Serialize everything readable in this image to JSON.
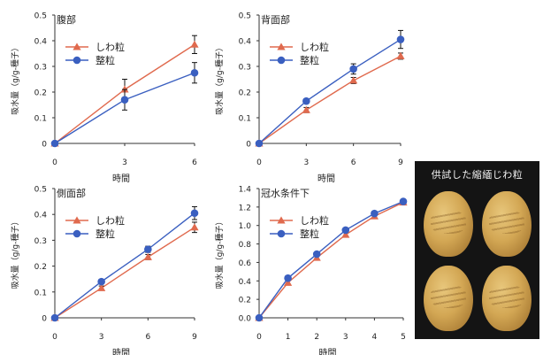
{
  "ylabel": "吸水量（g/g-種子）",
  "xlabel": "時間",
  "colors": {
    "shiwa": "#e06a4e",
    "sei": "#3a5fc0",
    "axis": "#333333"
  },
  "photo": {
    "caption": "供試した縮緬じわ粒"
  },
  "chart_data": [
    {
      "type": "line",
      "title": "腹部",
      "x": [
        0,
        3,
        6
      ],
      "xticks": [
        "0",
        "3",
        "6"
      ],
      "ylim": [
        0,
        0.5
      ],
      "yticks": [
        "0",
        "0.1",
        "0.2",
        "0.3",
        "0.4",
        "0.5"
      ],
      "series": [
        {
          "name": "しわ粒",
          "marker": "triangle",
          "values": [
            0,
            0.21,
            0.385
          ],
          "err": [
            0,
            0.04,
            0.035
          ]
        },
        {
          "name": "整粒",
          "marker": "circle",
          "values": [
            0,
            0.17,
            0.275
          ],
          "err": [
            0,
            0.04,
            0.04
          ]
        }
      ]
    },
    {
      "type": "line",
      "title": "背面部",
      "x": [
        0,
        3,
        6,
        9
      ],
      "xticks": [
        "0",
        "3",
        "6",
        "9"
      ],
      "ylim": [
        0,
        0.5
      ],
      "yticks": [
        "0",
        "0.1",
        "0.2",
        "0.3",
        "0.4",
        "0.5"
      ],
      "series": [
        {
          "name": "しわ粒",
          "marker": "triangle",
          "values": [
            0,
            0.13,
            0.245,
            0.34
          ],
          "err": [
            0,
            0.01,
            0.012,
            0.012
          ]
        },
        {
          "name": "整粒",
          "marker": "circle",
          "values": [
            0,
            0.165,
            0.29,
            0.405
          ],
          "err": [
            0,
            0.008,
            0.02,
            0.035
          ]
        }
      ]
    },
    {
      "type": "line",
      "title": "側面部",
      "x": [
        0,
        3,
        6,
        9
      ],
      "xticks": [
        "0",
        "3",
        "6",
        "9"
      ],
      "ylim": [
        0,
        0.5
      ],
      "yticks": [
        "0",
        "0.1",
        "0.2",
        "0.3",
        "0.4",
        "0.5"
      ],
      "series": [
        {
          "name": "しわ粒",
          "marker": "triangle",
          "values": [
            0,
            0.115,
            0.235,
            0.35
          ],
          "err": [
            0,
            0.008,
            0.01,
            0.02
          ]
        },
        {
          "name": "整粒",
          "marker": "circle",
          "values": [
            0,
            0.14,
            0.265,
            0.405
          ],
          "err": [
            0,
            0.006,
            0.012,
            0.025
          ]
        }
      ]
    },
    {
      "type": "line",
      "title": "冠水条件下",
      "x": [
        0,
        1,
        2,
        3,
        4,
        5
      ],
      "xticks": [
        "0",
        "1",
        "2",
        "3",
        "4",
        "5"
      ],
      "ylim": [
        0,
        1.4
      ],
      "yticks": [
        "0.0",
        "0.2",
        "0.4",
        "0.6",
        "0.8",
        "1.0",
        "1.2",
        "1.4"
      ],
      "series": [
        {
          "name": "しわ粒",
          "marker": "triangle",
          "values": [
            0,
            0.38,
            0.65,
            0.9,
            1.1,
            1.25
          ],
          "err": [
            0,
            0,
            0,
            0,
            0,
            0
          ]
        },
        {
          "name": "整粒",
          "marker": "circle",
          "values": [
            0,
            0.43,
            0.69,
            0.95,
            1.13,
            1.26
          ],
          "err": [
            0,
            0,
            0,
            0,
            0,
            0
          ]
        }
      ]
    }
  ]
}
